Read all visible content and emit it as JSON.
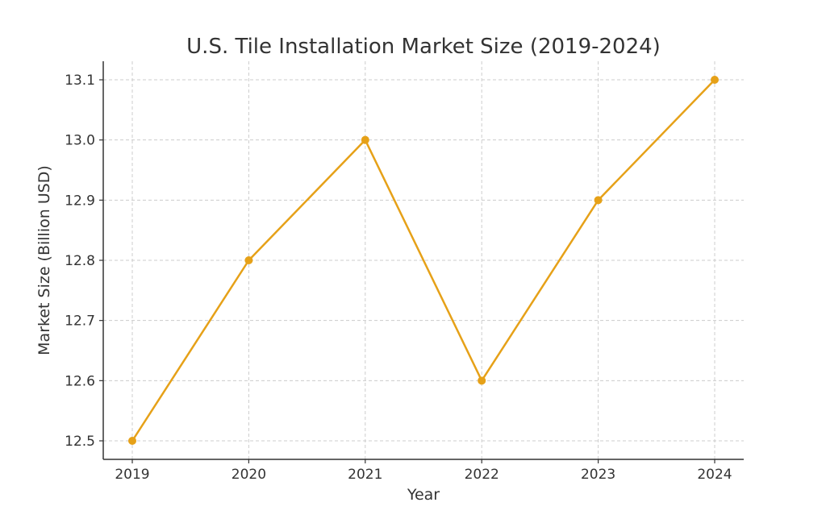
{
  "chart_data": {
    "type": "line",
    "title": "U.S. Tile Installation Market Size (2019-2024)",
    "xlabel": "Year",
    "ylabel": "Market Size (Billion USD)",
    "x": [
      "2019",
      "2020",
      "2021",
      "2022",
      "2023",
      "2024"
    ],
    "series": [
      {
        "values": [
          12.5,
          12.8,
          13.0,
          12.6,
          12.9,
          13.1
        ],
        "color": "#e6a118"
      }
    ],
    "yticks": [
      12.5,
      12.6,
      12.7,
      12.8,
      12.9,
      13.0,
      13.1
    ],
    "ytick_labels": [
      "12.5",
      "12.6",
      "12.7",
      "12.8",
      "12.9",
      "13.0",
      "13.1"
    ],
    "ylim": [
      12.5,
      13.1
    ],
    "grid": true,
    "legend": "none",
    "marker": "circle"
  }
}
